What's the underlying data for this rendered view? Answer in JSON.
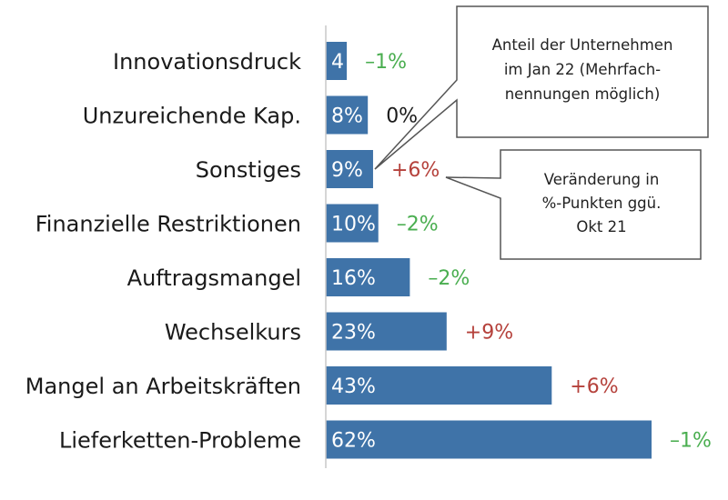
{
  "chart_data": {
    "type": "bar",
    "orientation": "horizontal",
    "categories": [
      "Innovationsdruck",
      "Unzureichende Kap.",
      "Sonstiges",
      "Finanzielle Restriktionen",
      "Auftragsmangel",
      "Wechselkurs",
      "Mangel an Arbeitskräften",
      "Lieferketten-Probleme"
    ],
    "values": [
      4,
      8,
      9,
      10,
      16,
      23,
      43,
      62
    ],
    "value_labels": [
      "4",
      "8%",
      "9%",
      "10%",
      "16%",
      "23%",
      "43%",
      "62%"
    ],
    "changes": [
      -1,
      0,
      6,
      -2,
      -2,
      9,
      6,
      -1
    ],
    "change_labels": [
      "–1%",
      "0%",
      "+6%",
      "–2%",
      "–2%",
      "+9%",
      "+6%",
      "–1%"
    ],
    "xlim": [
      0,
      75
    ],
    "grid": false,
    "legend": "none",
    "annotations": [
      {
        "lines": [
          "Anteil der Unternehmen",
          "im Jan 22 (Mehrfach-",
          "nennungen möglich)"
        ]
      },
      {
        "lines": [
          "Veränderung in",
          "%-Punkten ggü.",
          "Okt 21"
        ]
      }
    ]
  },
  "colors": {
    "bar": "#3f73a8",
    "positive_change": "#b5413b",
    "negative_change": "#4aae50",
    "neutral_change": "#1a1a1a",
    "axis": "#c8c8c8"
  }
}
